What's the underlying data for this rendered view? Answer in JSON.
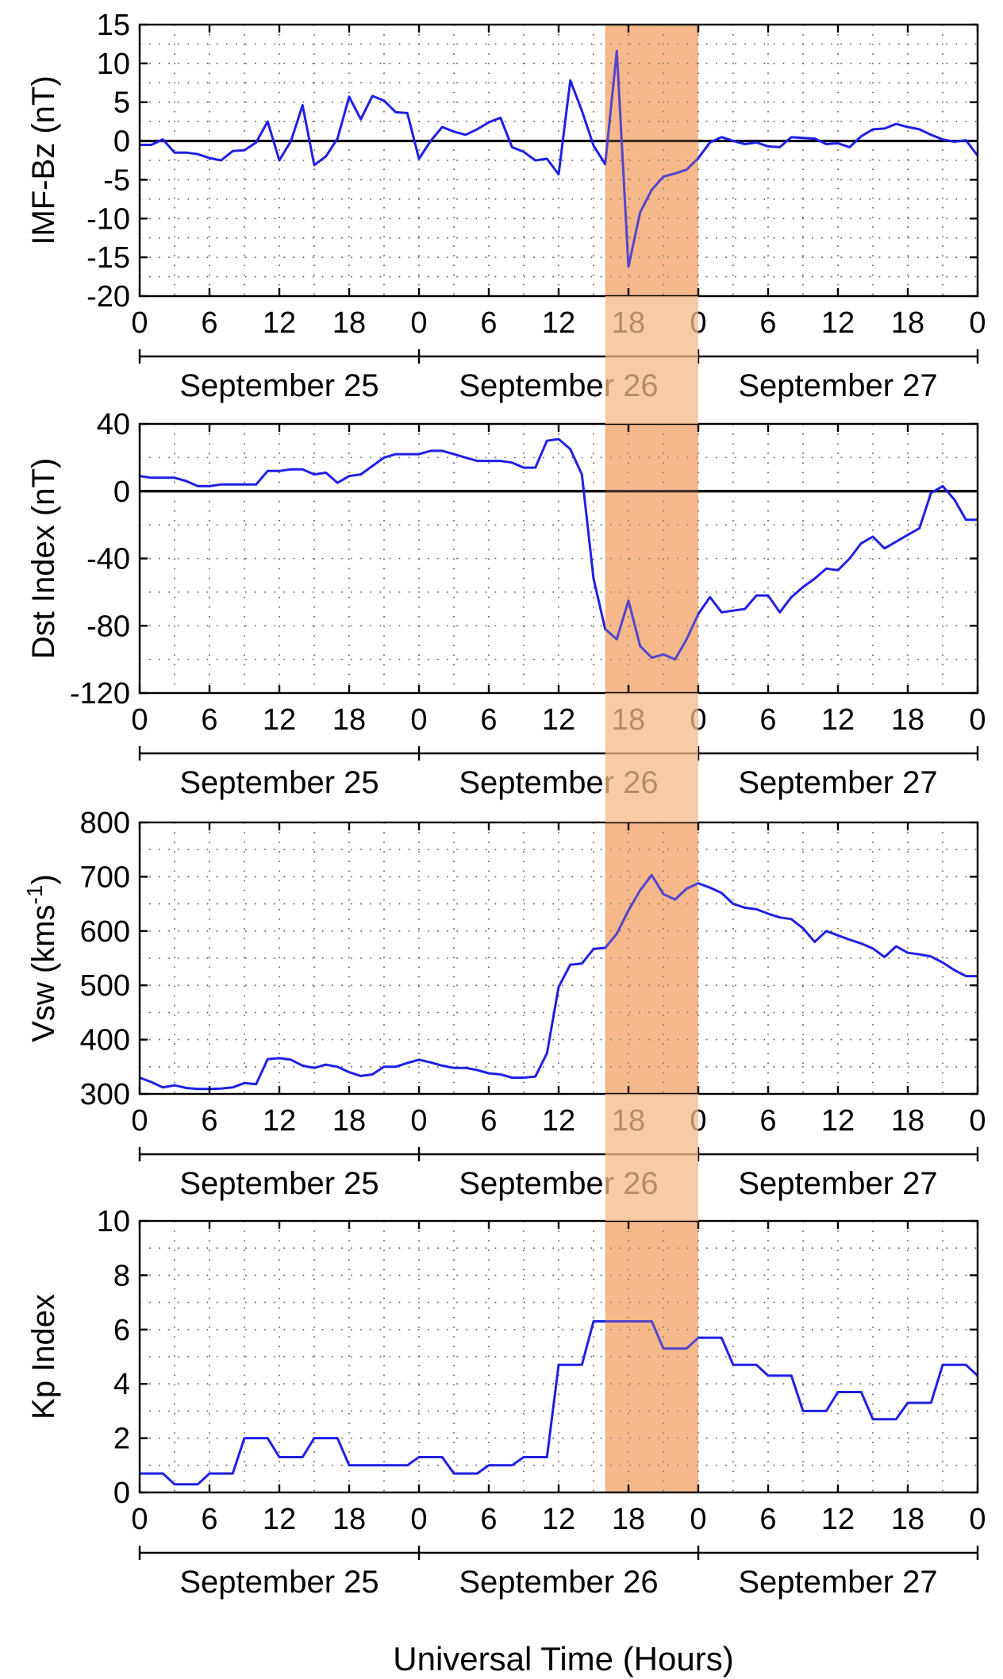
{
  "colors": {
    "line": "#1f1fe6",
    "zero_line": "#000000",
    "highlight": "#f5b98a",
    "grid": "#555555"
  },
  "highlight": {
    "start_hour": 40,
    "end_hour": 48
  },
  "shared": {
    "xlabel": "Universal Time (Hours)",
    "hour_ticks": [
      "0",
      "6",
      "12",
      "18",
      "0",
      "6",
      "12",
      "18",
      "0",
      "6",
      "12",
      "18",
      "0"
    ],
    "days": [
      "September 25",
      "September 26",
      "September 27"
    ]
  },
  "chart_data": [
    {
      "type": "line",
      "name": "imf",
      "ylabel": "IMF-Bz (nT)",
      "ylim": [
        -20,
        15
      ],
      "yticks": [
        15,
        10,
        5,
        0,
        -5,
        -10,
        -15,
        -20
      ],
      "zero_line": true,
      "grid": true,
      "xlim": [
        0,
        72
      ],
      "x": [
        0,
        1,
        2,
        3,
        4,
        5,
        6,
        7,
        8,
        9,
        10,
        11,
        12,
        13,
        14,
        15,
        16,
        17,
        18,
        19,
        20,
        21,
        22,
        23,
        24,
        25,
        26,
        27,
        28,
        29,
        30,
        31,
        32,
        33,
        34,
        35,
        36,
        37,
        38,
        39,
        40,
        41,
        42,
        43,
        44,
        45,
        46,
        47,
        48,
        49,
        50,
        51,
        52,
        53,
        54,
        55,
        56,
        57,
        58,
        59,
        60,
        61,
        62,
        63,
        64,
        65,
        66,
        67,
        68,
        69,
        70,
        71,
        72
      ],
      "y": [
        -0.5,
        -0.5,
        0.2,
        -1.5,
        -1.5,
        -1.7,
        -2.2,
        -2.5,
        -1.3,
        -1.2,
        -0.2,
        2.5,
        -2.5,
        0,
        4.6,
        -3.1,
        -2,
        0.3,
        5.7,
        2.8,
        5.8,
        5.2,
        3.7,
        3.6,
        -2.3,
        0,
        1.8,
        1.2,
        0.8,
        1.5,
        2.4,
        3,
        -0.8,
        -1.4,
        -2.5,
        -2.3,
        -4.3,
        7.8,
        3.9,
        -0.6,
        -3,
        11.6,
        -16.2,
        -9.2,
        -6.3,
        -4.6,
        -4.2,
        -3.7,
        -2.2,
        -0.2,
        0.5,
        0,
        -0.4,
        -0.2,
        -0.7,
        -0.8,
        0.5,
        0.4,
        0.3,
        -0.4,
        -0.3,
        -0.8,
        0.6,
        1.5,
        1.6,
        2.2,
        1.8,
        1.5,
        0.8,
        0.2,
        -0.1,
        0.1,
        -1.9
      ]
    },
    {
      "type": "line",
      "name": "dst",
      "ylabel": "Dst Index (nT)",
      "ylim": [
        -120,
        40
      ],
      "yticks": [
        40,
        0,
        -40,
        -80,
        -120
      ],
      "zero_line": true,
      "grid": true,
      "xlim": [
        0,
        72
      ],
      "x": [
        0,
        1,
        2,
        3,
        4,
        5,
        6,
        7,
        8,
        9,
        10,
        11,
        12,
        13,
        14,
        15,
        16,
        17,
        18,
        19,
        20,
        21,
        22,
        23,
        24,
        25,
        26,
        27,
        28,
        29,
        30,
        31,
        32,
        33,
        34,
        35,
        36,
        37,
        38,
        39,
        40,
        41,
        42,
        43,
        44,
        45,
        46,
        47,
        48,
        49,
        50,
        51,
        52,
        53,
        54,
        55,
        56,
        57,
        58,
        59,
        60,
        61,
        62,
        63,
        64,
        65,
        66,
        67,
        68,
        69,
        70,
        71,
        72
      ],
      "y": [
        9,
        8,
        8,
        8,
        6,
        3,
        3,
        4,
        4,
        4,
        4,
        12,
        12,
        13,
        13,
        10,
        11,
        5,
        9,
        10,
        15,
        20,
        22,
        22,
        22,
        24,
        24,
        22,
        20,
        18,
        18,
        18,
        17,
        14,
        14,
        30,
        31,
        25,
        10,
        -52,
        -82,
        -88,
        -65,
        -92,
        -99,
        -97,
        -100,
        -88,
        -73,
        -63,
        -72,
        -71,
        -70,
        -62,
        -62,
        -72,
        -63,
        -57,
        -52,
        -46,
        -47,
        -40,
        -31,
        -27,
        -34,
        -30,
        -26,
        -22,
        -1,
        3,
        -5,
        -17,
        -17
      ]
    },
    {
      "type": "line",
      "name": "vsw",
      "ylabel": "Vsw (kms",
      "ylabel_sup": "-1",
      "ylabel_end": ")",
      "ylim": [
        300,
        800
      ],
      "yticks": [
        800,
        700,
        600,
        500,
        400,
        300
      ],
      "zero_line": false,
      "grid": true,
      "xlim": [
        0,
        72
      ],
      "x": [
        0,
        1,
        2,
        3,
        4,
        5,
        6,
        7,
        8,
        9,
        10,
        11,
        12,
        13,
        14,
        15,
        16,
        17,
        18,
        19,
        20,
        21,
        22,
        23,
        24,
        25,
        26,
        27,
        28,
        29,
        30,
        31,
        32,
        33,
        34,
        35,
        36,
        37,
        38,
        39,
        40,
        41,
        42,
        43,
        44,
        45,
        46,
        47,
        48,
        49,
        50,
        51,
        52,
        53,
        54,
        55,
        56,
        57,
        58,
        59,
        60,
        61,
        62,
        63,
        64,
        65,
        66,
        67,
        68,
        69,
        70,
        71,
        72
      ],
      "y": [
        330,
        322,
        312,
        316,
        311,
        309,
        309,
        310,
        312,
        320,
        318,
        364,
        366,
        363,
        352,
        348,
        354,
        350,
        340,
        333,
        336,
        350,
        350,
        357,
        363,
        358,
        352,
        348,
        348,
        344,
        338,
        336,
        330,
        330,
        332,
        375,
        497,
        538,
        540,
        567,
        569,
        595,
        638,
        675,
        703,
        668,
        658,
        678,
        688,
        680,
        670,
        650,
        643,
        640,
        632,
        625,
        622,
        605,
        580,
        600,
        592,
        584,
        577,
        568,
        552,
        572,
        560,
        557,
        553,
        542,
        528,
        517,
        517
      ]
    },
    {
      "type": "line",
      "name": "kp",
      "ylabel": "Kp Index",
      "ylim": [
        0,
        10
      ],
      "yticks": [
        10,
        8,
        6,
        4,
        2,
        0
      ],
      "zero_line": false,
      "grid": true,
      "xlim": [
        0,
        72
      ],
      "x": [
        0,
        2,
        3,
        5,
        6,
        8,
        9,
        11,
        12,
        14,
        15,
        17,
        18,
        20,
        21,
        23,
        24,
        26,
        27,
        29,
        30,
        32,
        33,
        35,
        36,
        38,
        39,
        44,
        45,
        47,
        48,
        50,
        51,
        53,
        54,
        56,
        57,
        59,
        60,
        62,
        63,
        65,
        66,
        68,
        69,
        71,
        72
      ],
      "y": [
        0.7,
        0.7,
        0.3,
        0.3,
        0.7,
        0.7,
        2,
        2,
        1.3,
        1.3,
        2,
        2,
        1,
        1,
        1,
        1,
        1.3,
        1.3,
        0.7,
        0.7,
        1,
        1,
        1.3,
        1.3,
        4.7,
        4.7,
        6.3,
        6.3,
        5.3,
        5.3,
        5.7,
        5.7,
        4.7,
        4.7,
        4.3,
        4.3,
        3,
        3,
        3.7,
        3.7,
        2.7,
        2.7,
        3.3,
        3.3,
        4.7,
        4.7,
        4.3
      ]
    }
  ]
}
